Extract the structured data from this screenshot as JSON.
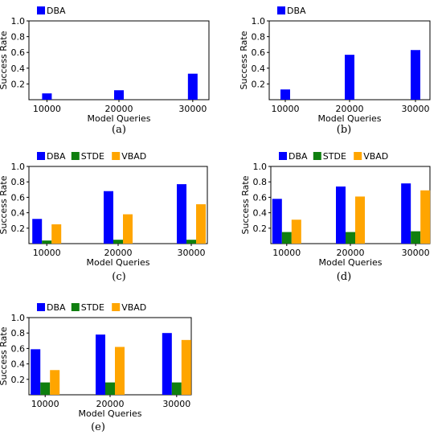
{
  "chart_data": [
    {
      "type": "bar",
      "panel_label": "(a)",
      "categories": [
        "10000",
        "20000",
        "30000"
      ],
      "series": [
        {
          "name": "DBA",
          "values": [
            0.08,
            0.12,
            0.33
          ]
        }
      ],
      "xlabel": "Model Queries",
      "ylabel": "Success Rate",
      "ylim": [
        0.0,
        1.0
      ],
      "yticks": [
        "0.2",
        "0.4",
        "0.6",
        "0.8",
        "1.0"
      ],
      "grid": false,
      "legend_position": "top-left"
    },
    {
      "type": "bar",
      "panel_label": "(b)",
      "categories": [
        "10000",
        "20000",
        "30000"
      ],
      "series": [
        {
          "name": "DBA",
          "values": [
            0.13,
            0.57,
            0.63
          ]
        }
      ],
      "xlabel": "Model Queries",
      "ylabel": "Success Rate",
      "ylim": [
        0.0,
        1.0
      ],
      "yticks": [
        "0.2",
        "0.4",
        "0.6",
        "0.8",
        "1.0"
      ],
      "grid": false,
      "legend_position": "top-left"
    },
    {
      "type": "bar",
      "panel_label": "(c)",
      "categories": [
        "10000",
        "20000",
        "30000"
      ],
      "series": [
        {
          "name": "DBA",
          "values": [
            0.32,
            0.68,
            0.77
          ]
        },
        {
          "name": "STDE",
          "values": [
            0.04,
            0.05,
            0.05
          ]
        },
        {
          "name": "VBAD",
          "values": [
            0.25,
            0.38,
            0.51
          ]
        }
      ],
      "xlabel": "Model Queries",
      "ylabel": "Success Rate",
      "ylim": [
        0.0,
        1.0
      ],
      "yticks": [
        "0.2",
        "0.4",
        "0.6",
        "0.8",
        "1.0"
      ],
      "grid": false,
      "legend_position": "top-left"
    },
    {
      "type": "bar",
      "panel_label": "(d)",
      "categories": [
        "10000",
        "20000",
        "30000"
      ],
      "series": [
        {
          "name": "DBA",
          "values": [
            0.58,
            0.74,
            0.78
          ]
        },
        {
          "name": "STDE",
          "values": [
            0.15,
            0.15,
            0.16
          ]
        },
        {
          "name": "VBAD",
          "values": [
            0.31,
            0.61,
            0.69
          ]
        }
      ],
      "xlabel": "Model Queries",
      "ylabel": "Success Rate",
      "ylim": [
        0.0,
        1.0
      ],
      "yticks": [
        "0.2",
        "0.4",
        "0.6",
        "0.8",
        "1.0"
      ],
      "grid": false,
      "legend_position": "top-left"
    },
    {
      "type": "bar",
      "panel_label": "(e)",
      "categories": [
        "10000",
        "20000",
        "30000"
      ],
      "series": [
        {
          "name": "DBA",
          "values": [
            0.59,
            0.78,
            0.8
          ]
        },
        {
          "name": "STDE",
          "values": [
            0.16,
            0.16,
            0.16
          ]
        },
        {
          "name": "VBAD",
          "values": [
            0.32,
            0.62,
            0.71
          ]
        }
      ],
      "xlabel": "Model Queries",
      "ylabel": "Success Rate",
      "ylim": [
        0.0,
        1.0
      ],
      "yticks": [
        "0.2",
        "0.4",
        "0.6",
        "0.8",
        "1.0"
      ],
      "grid": false,
      "legend_position": "top-left"
    }
  ],
  "colors": {
    "DBA": "#0000ff",
    "STDE": "#0f7f0f",
    "VBAD": "#ffa500"
  }
}
